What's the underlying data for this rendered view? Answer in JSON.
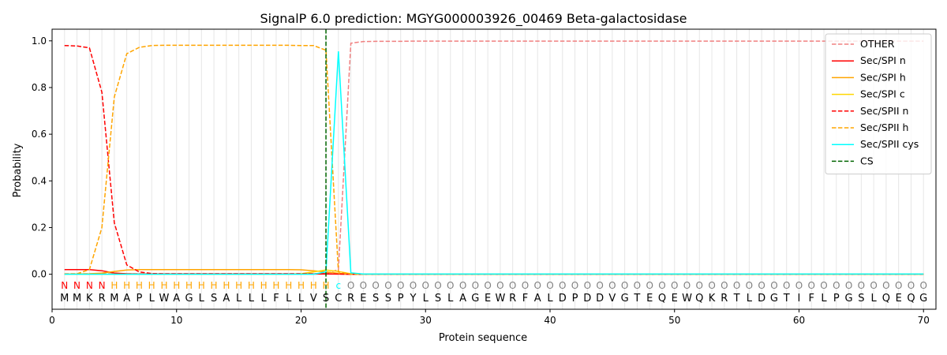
{
  "chart_data": {
    "type": "line",
    "title": "SignalP 6.0 prediction: MGYG000003926_00469 Beta-galactosidase",
    "xlabel": "Protein sequence",
    "ylabel": "Probability",
    "xlim": [
      0,
      71
    ],
    "ylim": [
      -0.15,
      1.05
    ],
    "x_ticks": [
      0,
      10,
      20,
      30,
      40,
      50,
      60,
      70
    ],
    "y_ticks": [
      0.0,
      0.2,
      0.4,
      0.6,
      0.8,
      1.0
    ],
    "x_tick_labels": [
      "0",
      "10",
      "20",
      "30",
      "40",
      "50",
      "60",
      "70"
    ],
    "y_tick_labels": [
      "0.0",
      "0.2",
      "0.4",
      "0.6",
      "0.8",
      "1.0"
    ],
    "legend_position": "top-right",
    "sequence": [
      "M",
      "M",
      "K",
      "R",
      "M",
      "A",
      "P",
      "L",
      "W",
      "A",
      "G",
      "L",
      "S",
      "A",
      "L",
      "L",
      "L",
      "F",
      "L",
      "L",
      "V",
      "S",
      "C",
      "R",
      "E",
      "S",
      "S",
      "P",
      "Y",
      "L",
      "S",
      "L",
      "A",
      "G",
      "E",
      "W",
      "R",
      "F",
      "A",
      "L",
      "D",
      "P",
      "D",
      "D",
      "V",
      "G",
      "T",
      "E",
      "Q",
      "E",
      "W",
      "Q",
      "K",
      "R",
      "T",
      "L",
      "D",
      "G",
      "T",
      "I",
      "F",
      "L",
      "P",
      "G",
      "S",
      "L",
      "Q",
      "E",
      "Q",
      "G"
    ],
    "region_labels": [
      "N",
      "N",
      "N",
      "N",
      "H",
      "H",
      "H",
      "H",
      "H",
      "H",
      "H",
      "H",
      "H",
      "H",
      "H",
      "H",
      "H",
      "H",
      "H",
      "H",
      "H",
      "H",
      "c",
      "O",
      "O",
      "O",
      "O",
      "O",
      "O",
      "O",
      "O",
      "O",
      "O",
      "O",
      "O",
      "O",
      "O",
      "O",
      "O",
      "O",
      "O",
      "O",
      "O",
      "O",
      "O",
      "O",
      "O",
      "O",
      "O",
      "O",
      "O",
      "O",
      "O",
      "O",
      "O",
      "O",
      "O",
      "O",
      "O",
      "O",
      "O",
      "O",
      "O",
      "O",
      "O",
      "O",
      "O",
      "O",
      "O",
      "O"
    ],
    "region_colors": {
      "N": "#ff0000",
      "H": "#ffa500",
      "c": "#00ffff",
      "O": "#808080"
    },
    "cs_position": 22,
    "series": [
      {
        "name": "OTHER",
        "color": "#f08080",
        "dash": "dashed",
        "values": [
          0.002,
          0.002,
          0.002,
          0.002,
          0.002,
          0.002,
          0.002,
          0.002,
          0.002,
          0.002,
          0.002,
          0.002,
          0.002,
          0.002,
          0.002,
          0.002,
          0.002,
          0.002,
          0.002,
          0.002,
          0.002,
          0.003,
          0.02,
          0.99,
          0.997,
          0.998,
          0.998,
          0.998,
          0.999,
          0.999,
          0.999,
          0.999,
          0.999,
          0.999,
          0.999,
          0.999,
          0.999,
          0.999,
          0.999,
          0.999,
          0.999,
          0.999,
          0.999,
          0.999,
          0.999,
          0.999,
          0.999,
          0.999,
          0.999,
          0.999,
          0.999,
          0.999,
          0.999,
          0.999,
          0.999,
          0.999,
          0.999,
          0.999,
          0.999,
          0.999,
          0.999,
          0.999,
          0.999,
          0.999,
          0.999,
          0.999,
          0.999,
          0.999,
          0.999,
          0.999
        ]
      },
      {
        "name": "Sec/SPI n",
        "color": "#ff0000",
        "dash": "solid",
        "values": [
          0.02,
          0.02,
          0.02,
          0.015,
          0.005,
          0.002,
          0.001,
          0.001,
          0.001,
          0.001,
          0.001,
          0.001,
          0.001,
          0.001,
          0.001,
          0.001,
          0.001,
          0.001,
          0.001,
          0.001,
          0.001,
          0.001,
          0.001,
          0.0,
          0.0,
          0.0,
          0.0,
          0.0,
          0.0,
          0.0,
          0.0,
          0.0,
          0.0,
          0.0,
          0.0,
          0.0,
          0.0,
          0.0,
          0.0,
          0.0,
          0.0,
          0.0,
          0.0,
          0.0,
          0.0,
          0.0,
          0.0,
          0.0,
          0.0,
          0.0,
          0.0,
          0.0,
          0.0,
          0.0,
          0.0,
          0.0,
          0.0,
          0.0,
          0.0,
          0.0,
          0.0,
          0.0,
          0.0,
          0.0,
          0.0,
          0.0,
          0.0,
          0.0,
          0.0,
          0.0
        ]
      },
      {
        "name": "Sec/SPI h",
        "color": "#ffa500",
        "dash": "solid",
        "values": [
          0.001,
          0.001,
          0.002,
          0.005,
          0.012,
          0.018,
          0.02,
          0.02,
          0.02,
          0.02,
          0.02,
          0.02,
          0.02,
          0.02,
          0.02,
          0.02,
          0.02,
          0.02,
          0.02,
          0.019,
          0.015,
          0.01,
          0.004,
          0.0,
          0.0,
          0.0,
          0.0,
          0.0,
          0.0,
          0.0,
          0.0,
          0.0,
          0.0,
          0.0,
          0.0,
          0.0,
          0.0,
          0.0,
          0.0,
          0.0,
          0.0,
          0.0,
          0.0,
          0.0,
          0.0,
          0.0,
          0.0,
          0.0,
          0.0,
          0.0,
          0.0,
          0.0,
          0.0,
          0.0,
          0.0,
          0.0,
          0.0,
          0.0,
          0.0,
          0.0,
          0.0,
          0.0,
          0.0,
          0.0,
          0.0,
          0.0,
          0.0,
          0.0,
          0.0,
          0.0
        ]
      },
      {
        "name": "Sec/SPI c",
        "color": "#ffd700",
        "dash": "solid",
        "values": [
          0.0,
          0.0,
          0.0,
          0.0,
          0.0,
          0.0,
          0.0,
          0.0,
          0.0,
          0.0,
          0.0,
          0.0,
          0.0,
          0.0,
          0.0,
          0.0,
          0.0,
          0.0,
          0.0,
          0.002,
          0.01,
          0.018,
          0.012,
          0.002,
          0.0,
          0.0,
          0.0,
          0.0,
          0.0,
          0.0,
          0.0,
          0.0,
          0.0,
          0.0,
          0.0,
          0.0,
          0.0,
          0.0,
          0.0,
          0.0,
          0.0,
          0.0,
          0.0,
          0.0,
          0.0,
          0.0,
          0.0,
          0.0,
          0.0,
          0.0,
          0.0,
          0.0,
          0.0,
          0.0,
          0.0,
          0.0,
          0.0,
          0.0,
          0.0,
          0.0,
          0.0,
          0.0,
          0.0,
          0.0,
          0.0,
          0.0,
          0.0,
          0.0,
          0.0,
          0.0
        ]
      },
      {
        "name": "Sec/SPII n",
        "color": "#ff0000",
        "dash": "dashed",
        "values": [
          0.98,
          0.978,
          0.97,
          0.78,
          0.22,
          0.04,
          0.01,
          0.003,
          0.002,
          0.002,
          0.002,
          0.002,
          0.002,
          0.002,
          0.002,
          0.002,
          0.002,
          0.002,
          0.002,
          0.002,
          0.002,
          0.002,
          0.001,
          0.0,
          0.0,
          0.0,
          0.0,
          0.0,
          0.0,
          0.0,
          0.0,
          0.0,
          0.0,
          0.0,
          0.0,
          0.0,
          0.0,
          0.0,
          0.0,
          0.0,
          0.0,
          0.0,
          0.0,
          0.0,
          0.0,
          0.0,
          0.0,
          0.0,
          0.0,
          0.0,
          0.0,
          0.0,
          0.0,
          0.0,
          0.0,
          0.0,
          0.0,
          0.0,
          0.0,
          0.0,
          0.0,
          0.0,
          0.0,
          0.0,
          0.0,
          0.0,
          0.0,
          0.0,
          0.0,
          0.0
        ]
      },
      {
        "name": "Sec/SPII h",
        "color": "#ffa500",
        "dash": "dashed",
        "values": [
          0.001,
          0.002,
          0.02,
          0.2,
          0.76,
          0.945,
          0.972,
          0.98,
          0.981,
          0.981,
          0.981,
          0.981,
          0.981,
          0.981,
          0.981,
          0.981,
          0.981,
          0.981,
          0.981,
          0.98,
          0.98,
          0.96,
          0.01,
          0.001,
          0.0,
          0.0,
          0.0,
          0.0,
          0.0,
          0.0,
          0.0,
          0.0,
          0.0,
          0.0,
          0.0,
          0.0,
          0.0,
          0.0,
          0.0,
          0.0,
          0.0,
          0.0,
          0.0,
          0.0,
          0.0,
          0.0,
          0.0,
          0.0,
          0.0,
          0.0,
          0.0,
          0.0,
          0.0,
          0.0,
          0.0,
          0.0,
          0.0,
          0.0,
          0.0,
          0.0,
          0.0,
          0.0,
          0.0,
          0.0,
          0.0,
          0.0,
          0.0,
          0.0,
          0.0,
          0.0
        ]
      },
      {
        "name": "Sec/SPII cys",
        "color": "#00ffff",
        "dash": "solid",
        "values": [
          0.0,
          0.0,
          0.0,
          0.0,
          0.0,
          0.0,
          0.0,
          0.0,
          0.0,
          0.0,
          0.0,
          0.0,
          0.0,
          0.0,
          0.0,
          0.0,
          0.0,
          0.0,
          0.0,
          0.0,
          0.0,
          0.01,
          0.955,
          0.006,
          0.001,
          0.001,
          0.001,
          0.001,
          0.001,
          0.001,
          0.001,
          0.001,
          0.001,
          0.001,
          0.001,
          0.001,
          0.001,
          0.001,
          0.001,
          0.001,
          0.001,
          0.001,
          0.001,
          0.001,
          0.001,
          0.001,
          0.001,
          0.001,
          0.001,
          0.001,
          0.001,
          0.001,
          0.001,
          0.001,
          0.001,
          0.001,
          0.001,
          0.001,
          0.001,
          0.001,
          0.001,
          0.001,
          0.001,
          0.001,
          0.001,
          0.001,
          0.001,
          0.001,
          0.001,
          0.001
        ]
      },
      {
        "name": "CS",
        "color": "#006400",
        "dash": "dashed",
        "values": []
      }
    ]
  }
}
